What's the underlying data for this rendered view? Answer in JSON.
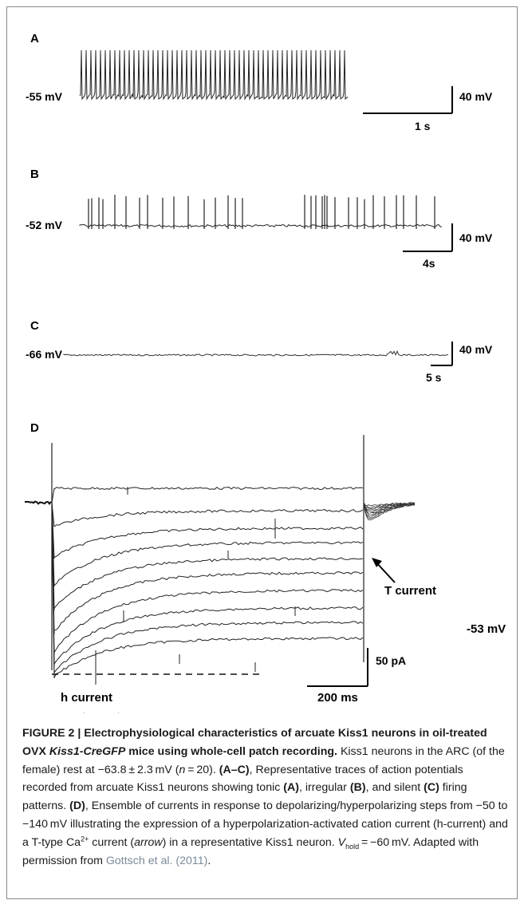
{
  "panels": {
    "A": {
      "letter": "A",
      "voltage": "-55 mV",
      "scale_y": "40 mV",
      "scale_x": "1 s"
    },
    "B": {
      "letter": "B",
      "voltage": "-52 mV",
      "scale_y": "40 mV",
      "scale_x": "4s"
    },
    "C": {
      "letter": "C",
      "voltage": "-66 mV",
      "scale_y": "40 mV",
      "scale_x": "5 s"
    },
    "D": {
      "letter": "D",
      "t_current": "T current",
      "h_current": "h current",
      "voltage": "-53 mV",
      "scale_y": "50 pA",
      "scale_x": "200 ms"
    }
  },
  "caption": {
    "figure_label": "FIGURE 2 | Electrophysiological characteristics of arcuate Kiss1 neurons in oil-treated OVX ",
    "figure_label_italic": "Kiss1-CreGFP",
    "figure_label_end": " mice using whole-cell patch recording.",
    "t1": " Kiss1 neurons in the ARC (of the female) rest at −63.8 ± 2.3 mV (",
    "t1_n": "n",
    "t2": " = 20). ",
    "ac": "(A–C)",
    "t3": ", Representative traces of action potentials recorded from arcuate Kiss1 neurons showing tonic ",
    "a": "(A)",
    "t4": ", irregular ",
    "b": "(B)",
    "t5": ", and silent ",
    "c": "(C)",
    "t6": " firing patterns. ",
    "d": "(D)",
    "t7": ", Ensemble of currents in response to depolarizing/hyperpolarizing steps from −50 to −140 mV illustrating the expression of a hyperpolarization-activated cation current (h-current) and a T-type Ca",
    "sup": "2+",
    "t8": " current (",
    "arrow": "arrow",
    "t9": ") in a representative Kiss1 neuron. ",
    "vhold_v": "V",
    "vhold_sub": "hold",
    "t10": " = −60 mV. Adapted with permission from ",
    "ref": "Gottsch et al. (2011)",
    "t11": "."
  }
}
